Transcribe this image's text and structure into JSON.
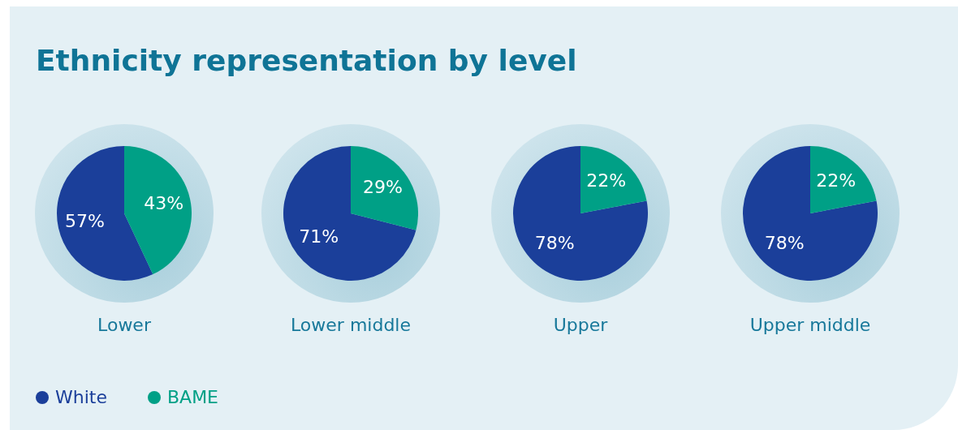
{
  "chart_data": [
    {
      "type": "pie",
      "title": "Ethnicity representation by level",
      "xlabel": "Lower",
      "categories": [
        "White",
        "BAME"
      ],
      "values": [
        57,
        43
      ],
      "colors": [
        "#1b3f9a",
        "#00a086"
      ],
      "value_labels": [
        "57%",
        "43%"
      ],
      "legend": "bottom left"
    },
    {
      "type": "pie",
      "xlabel": "Lower middle",
      "categories": [
        null,
        null
      ],
      "values": [
        71,
        29
      ],
      "colors": [
        "#1b3f9a",
        "#00a086"
      ],
      "value_labels": [
        "71%",
        "29%"
      ]
    },
    {
      "type": "pie",
      "xlabel": "Upper",
      "categories": [
        null,
        null
      ],
      "values": [
        78,
        22
      ],
      "colors": [
        "#1b3f9a",
        "#00a086"
      ],
      "value_labels": [
        "78%",
        "22%"
      ]
    },
    {
      "type": "pie",
      "xlabel": "Upper middle",
      "categories": [
        null,
        null
      ],
      "values": [
        78,
        22
      ],
      "colors": [
        "#1b3f9a",
        "#00a086"
      ],
      "value_labels": [
        "78%",
        "22%"
      ]
    }
  ]
}
